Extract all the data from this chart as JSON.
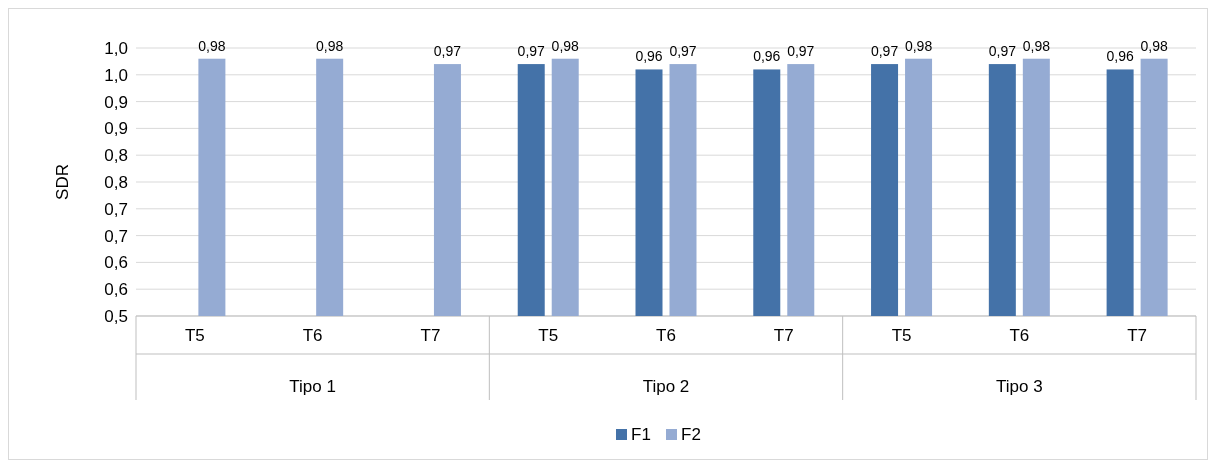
{
  "chart_data": {
    "type": "bar",
    "ylabel": "SDR",
    "categories": [
      "T5",
      "T6",
      "T7",
      "T5",
      "T6",
      "T7",
      "T5",
      "T6",
      "T7"
    ],
    "annotations": [
      "Tipo 1",
      "Tipo 2",
      "Tipo 3"
    ],
    "series": [
      {
        "name": "F1",
        "color": "#4472a8",
        "values": [
          null,
          null,
          null,
          0.97,
          0.96,
          0.96,
          0.97,
          0.97,
          0.96
        ],
        "value_labels": [
          null,
          null,
          null,
          "0,97",
          "0,96",
          "0,96",
          "0,97",
          "0,97",
          "0,96"
        ]
      },
      {
        "name": "F2",
        "color": "#95abd3",
        "values": [
          0.98,
          0.98,
          0.97,
          0.98,
          0.97,
          0.97,
          0.98,
          0.98,
          0.98
        ],
        "value_labels": [
          "0,98",
          "0,98",
          "0,97",
          "0,98",
          "0,97",
          "0,97",
          "0,98",
          "0,98",
          "0,98"
        ]
      }
    ],
    "ylim": [
      0.5,
      1.0
    ],
    "yticks": [
      {
        "value": 0.5,
        "label": "0,5"
      },
      {
        "value": 0.55,
        "label": "0,6"
      },
      {
        "value": 0.6,
        "label": "0,6"
      },
      {
        "value": 0.65,
        "label": "0,7"
      },
      {
        "value": 0.7,
        "label": "0,7"
      },
      {
        "value": 0.75,
        "label": "0,8"
      },
      {
        "value": 0.8,
        "label": "0,8"
      },
      {
        "value": 0.85,
        "label": "0,9"
      },
      {
        "value": 0.9,
        "label": "0,9"
      },
      {
        "value": 0.95,
        "label": "1,0"
      },
      {
        "value": 1.0,
        "label": "1,0"
      }
    ],
    "grid": "y",
    "legend": "bottom"
  }
}
